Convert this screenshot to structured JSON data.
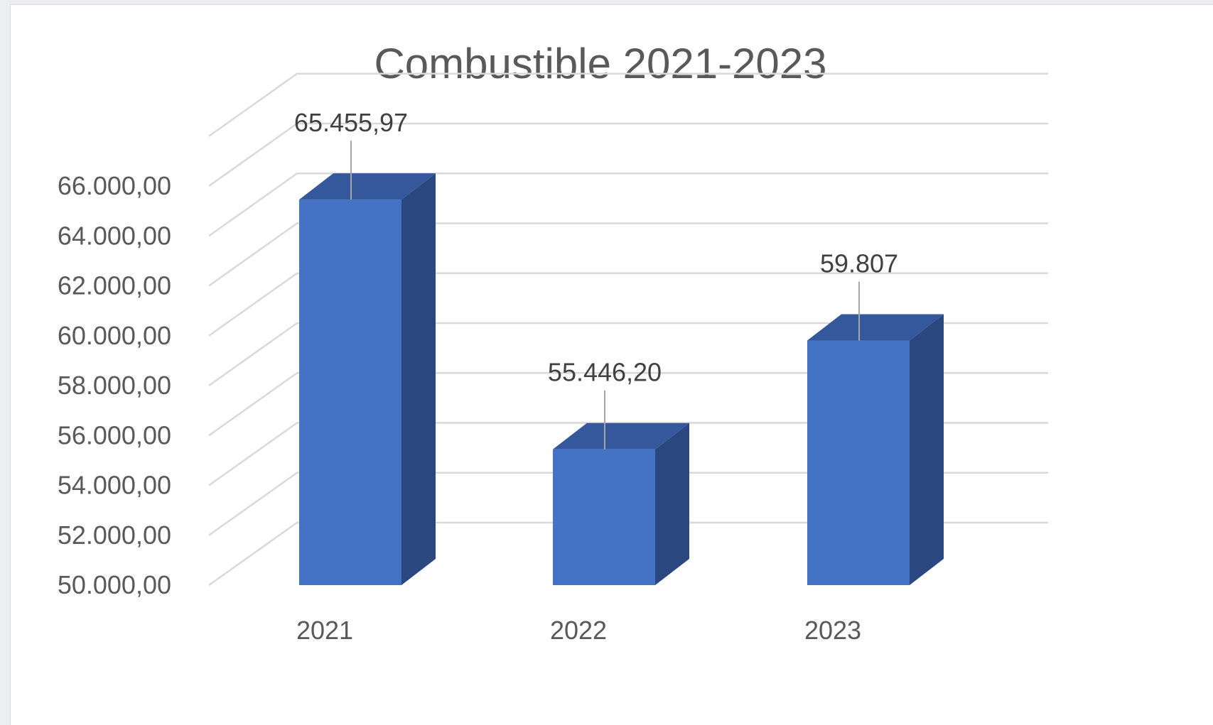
{
  "chart_data": {
    "type": "bar",
    "title": "Combustible 2021-2023",
    "categories": [
      "2021",
      "2022",
      "2023"
    ],
    "values": [
      65455.97,
      55446.2,
      59807
    ],
    "value_labels": [
      "65.455,97",
      "55.446,20",
      "59.807"
    ],
    "ylim": [
      50000,
      66000
    ],
    "y_ticks": [
      50000,
      52000,
      54000,
      56000,
      58000,
      60000,
      62000,
      64000,
      66000
    ],
    "y_tick_labels": [
      "50.000,00",
      "52.000,00",
      "54.000,00",
      "56.000,00",
      "58.000,00",
      "60.000,00",
      "62.000,00",
      "64.000,00",
      "66.000,00"
    ],
    "style": "3d-column",
    "grid": true,
    "legend": "none",
    "colors": {
      "bar_front": "#4472c4",
      "bar_side": "#2a4780",
      "bar_top": "#34589b",
      "grid": "#d9d9d9",
      "leader": "#a6a6a6"
    }
  }
}
